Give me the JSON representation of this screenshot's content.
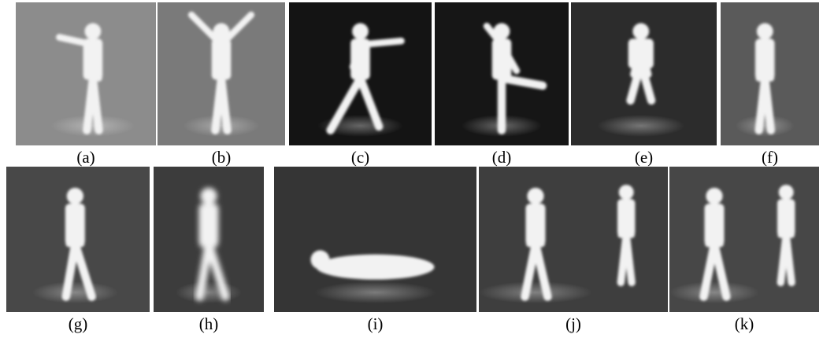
{
  "figure": {
    "panels": [
      {
        "label": "(a)"
      },
      {
        "label": "(b)"
      },
      {
        "label": "(c)"
      },
      {
        "label": "(d)"
      },
      {
        "label": "(e)"
      },
      {
        "label": "(f)"
      },
      {
        "label": "(g)"
      },
      {
        "label": "(h)"
      },
      {
        "label": "(i)"
      },
      {
        "label": "(j)"
      },
      {
        "label": "(k)"
      }
    ]
  }
}
